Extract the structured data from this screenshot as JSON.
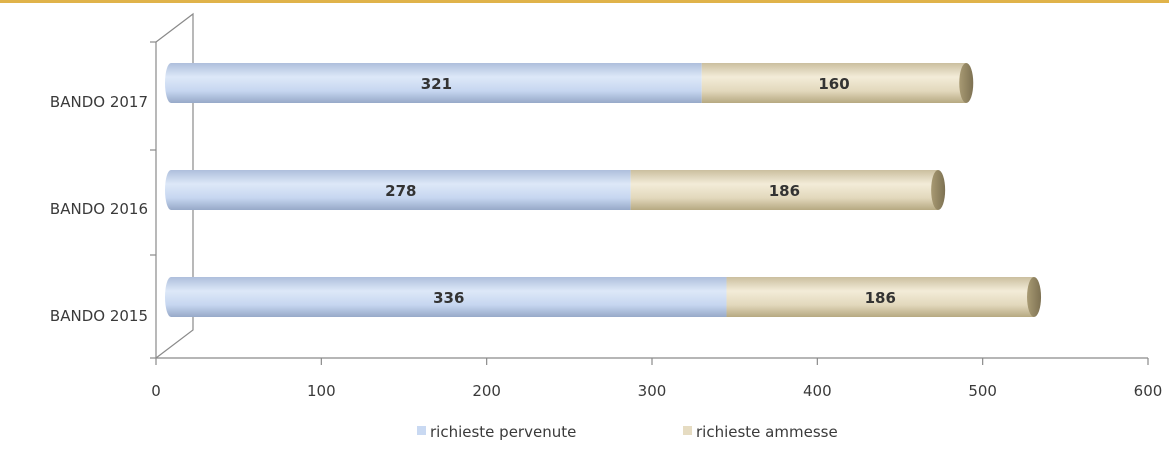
{
  "chart_data": {
    "type": "bar",
    "orientation": "horizontal",
    "stacked": true,
    "categories": [
      "BANDO 2017",
      "BANDO 2016",
      "BANDO 2015"
    ],
    "series": [
      {
        "name": "richieste pervenute",
        "values": [
          321,
          278,
          336
        ],
        "color": "#c9d9f2"
      },
      {
        "name": "richieste ammesse",
        "values": [
          160,
          186,
          186
        ],
        "color": "#e6dcc2"
      }
    ],
    "data_labels": [
      [
        "321",
        "278",
        "336"
      ],
      [
        "160",
        "186",
        "186"
      ]
    ],
    "xlim": [
      0,
      600
    ],
    "xticks": [
      "0",
      "100",
      "200",
      "300",
      "400",
      "500",
      "600"
    ],
    "title": "",
    "xlabel": "",
    "ylabel": "",
    "legend_position": "bottom",
    "grid": false
  },
  "colors": {
    "accent_rule": "#e0b34a",
    "axis": "#8a8a8a"
  }
}
